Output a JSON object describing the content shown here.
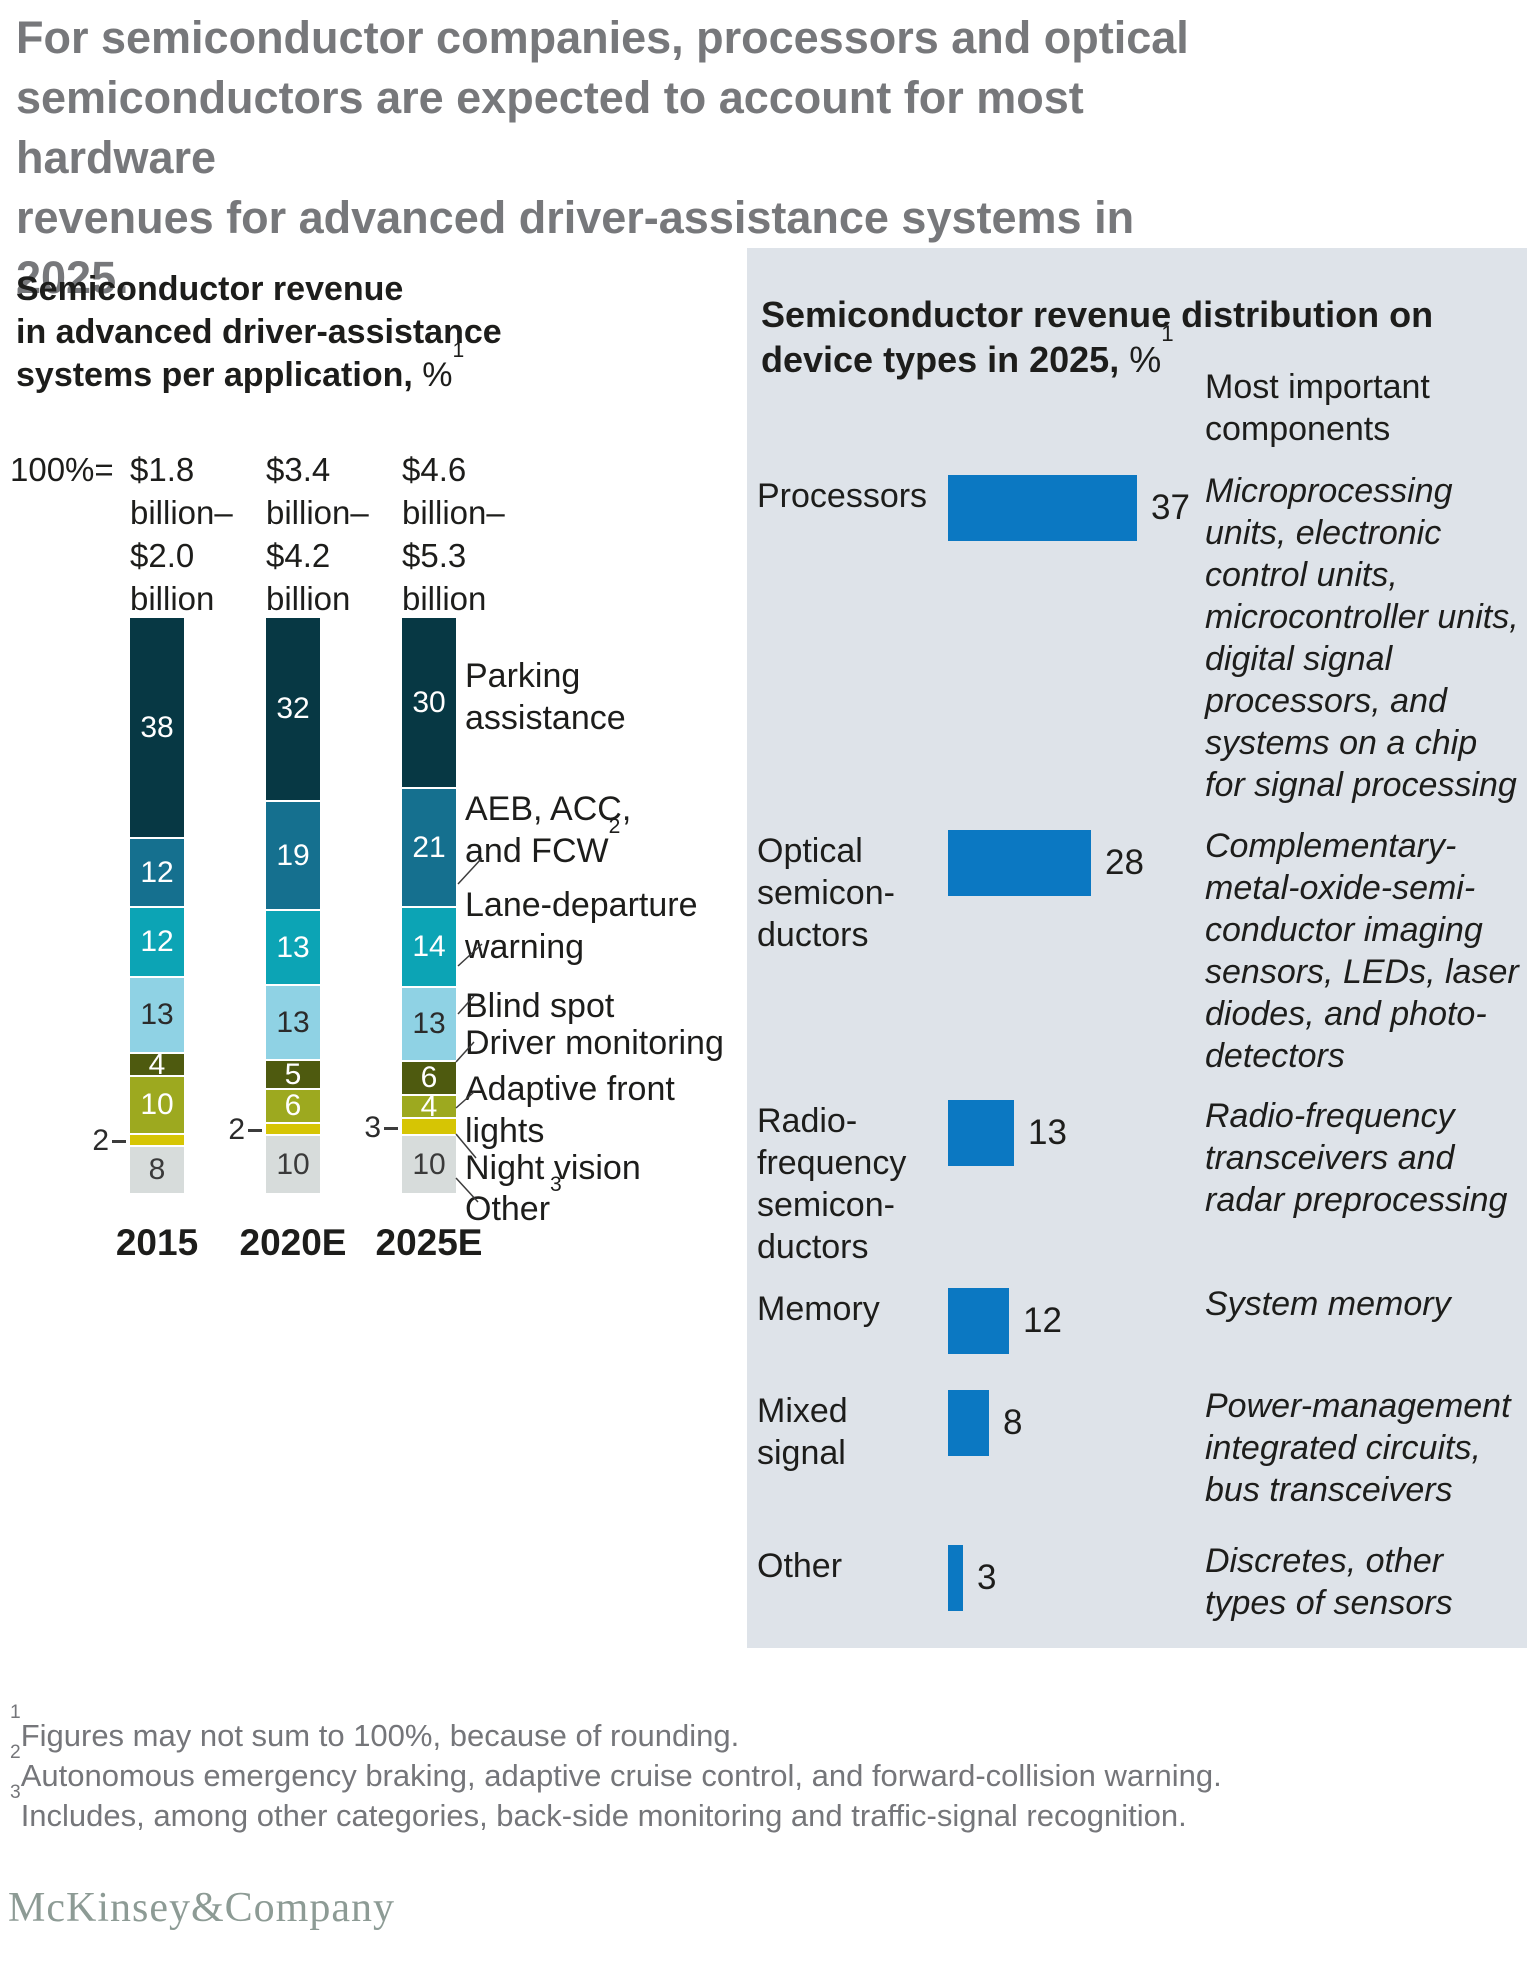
{
  "page_title": "For semiconductor companies, processors and optical\nsemiconductors are expected to account for most hardware\nrevenues for advanced driver-assistance systems in 2025.",
  "colors": {
    "headline_gray": "#77787b",
    "panel_background": "#dee3e9",
    "panel_bar_blue": "#0b78c2",
    "footnote_gray": "#75767a",
    "logo_color": "#8d9b95"
  },
  "chart_data": [
    {
      "type": "bar",
      "subtype": "stacked-percent-column",
      "title": "Semiconductor revenue in advanced driver-assistance systems per application, %",
      "title_display": "Semiconductor revenue\nin advanced driver-assistance\nsystems per application,",
      "title_suffix": " %",
      "title_sup": "1",
      "base_label": "100%=",
      "unit": "%",
      "ylim": [
        0,
        100
      ],
      "categories": [
        "2015",
        "2020E",
        "2025E"
      ],
      "columns": [
        {
          "year": "2015",
          "total": "$1.8 billion–$2.0 billion",
          "total_display": "$1.8\nbillion–\n$2.0\nbillion"
        },
        {
          "year": "2020E",
          "total": "$3.4 billion–$4.2 billion",
          "total_display": "$3.4\nbillion–\n$4.2\nbillion"
        },
        {
          "year": "2025E",
          "total": "$4.6 billion–$5.3 billion",
          "total_display": "$4.6\nbillion–\n$5.3\nbillion"
        }
      ],
      "series": [
        {
          "name": "Parking assistance",
          "label_display": "Parking\nassistance",
          "sup": "",
          "values": [
            38,
            32,
            30
          ],
          "color": "#073844",
          "text_color": "#ffffff",
          "label_outside": false
        },
        {
          "name": "AEB, ACC, and FCW",
          "label_display": "AEB, ACC,\nand FCW",
          "sup": "2",
          "values": [
            12,
            19,
            21
          ],
          "color": "#15708f",
          "text_color": "#ffffff",
          "label_outside": false
        },
        {
          "name": "Lane-departure warning",
          "label_display": "Lane-departure\nwarning",
          "sup": "",
          "values": [
            12,
            13,
            14
          ],
          "color": "#0ca4b5",
          "text_color": "#ffffff",
          "label_outside": false
        },
        {
          "name": "Blind spot",
          "label_display": "Blind spot",
          "sup": "",
          "values": [
            13,
            13,
            13
          ],
          "color": "#8fd2e4",
          "text_color": "#2b2b2b",
          "label_outside": false
        },
        {
          "name": "Driver monitoring",
          "label_display": "Driver monitoring",
          "sup": "",
          "values": [
            4,
            5,
            6
          ],
          "color": "#4e5a0f",
          "text_color": "#ffffff",
          "label_outside": false
        },
        {
          "name": "Adaptive front lights",
          "label_display": "Adaptive front\nlights",
          "sup": "",
          "values": [
            10,
            6,
            4
          ],
          "color": "#9da91f",
          "text_color": "#ffffff",
          "label_outside": false
        },
        {
          "name": "Night vision",
          "label_display": "Night vision",
          "sup": "",
          "values": [
            2,
            2,
            3
          ],
          "color": "#d6c504",
          "text_color": "#2b2b2b",
          "label_outside": true
        },
        {
          "name": "Other",
          "label_display": "Other",
          "sup": "3",
          "values": [
            8,
            10,
            10
          ],
          "color": "#d7dcdb",
          "text_color": "#3a3a3a",
          "label_outside": false
        }
      ]
    },
    {
      "type": "bar",
      "subtype": "horizontal-bar",
      "title": "Semiconductor revenue distribution on device types in 2025, %",
      "title_display": "Semiconductor revenue distribution on\ndevice types in 2025,",
      "title_suffix": " %",
      "title_sup": "1",
      "column_header": "Most important\ncomponents",
      "unit": "%",
      "bar_color": "#0b78c2",
      "categories": [
        "Processors",
        "Optical semiconductors",
        "Radio-frequency semiconductors",
        "Memory",
        "Mixed signal",
        "Other"
      ],
      "values": [
        37,
        28,
        13,
        12,
        8,
        3
      ],
      "rows": [
        {
          "label": "Processors",
          "label_display": "Processors",
          "value": 37,
          "description": "Microprocessing units, electronic control units, microcontroller units, digital signal processors, and systems on a chip for signal processing",
          "description_display": "Microprocessing\nunits, electronic\ncontrol units,\nmicrocontroller units,\ndigital signal\nprocessors, and\nsystems on a chip\nfor signal processing"
        },
        {
          "label": "Optical semiconductors",
          "label_display": "Optical\nsemicon-\nductors",
          "value": 28,
          "description": "Complementary-metal-oxide-semiconductor imaging sensors, LEDs, laser diodes, and photodetectors",
          "description_display": "Complementary-\nmetal-oxide-semi-\nconductor imaging\nsensors, LEDs, laser\ndiodes, and photo-\ndetectors"
        },
        {
          "label": "Radio-frequency semiconductors",
          "label_display": "Radio-\nfrequency\nsemicon-\nductors",
          "value": 13,
          "description": "Radio-frequency transceivers and radar preprocessing",
          "description_display": "Radio-frequency\ntransceivers and\nradar preprocessing"
        },
        {
          "label": "Memory",
          "label_display": "Memory",
          "value": 12,
          "description": "System memory",
          "description_display": "System memory"
        },
        {
          "label": "Mixed signal",
          "label_display": "Mixed\nsignal",
          "value": 8,
          "description": "Power-management integrated circuits, bus transceivers",
          "description_display": "Power-management\nintegrated circuits,\nbus transceivers"
        },
        {
          "label": "Other",
          "label_display": "Other",
          "value": 3,
          "description": "Discretes, other types of sensors",
          "description_display": "Discretes, other\ntypes of sensors"
        }
      ]
    }
  ],
  "footnotes": [
    {
      "sup": "1",
      "text": "Figures may not sum to 100%, because of rounding."
    },
    {
      "sup": "2",
      "text": "Autonomous emergency braking, adaptive cruise control, and forward-collision warning."
    },
    {
      "sup": "3",
      "text": "Includes, among other categories, back-side monitoring and traffic-signal recognition."
    }
  ],
  "logo": "McKinsey&Company"
}
